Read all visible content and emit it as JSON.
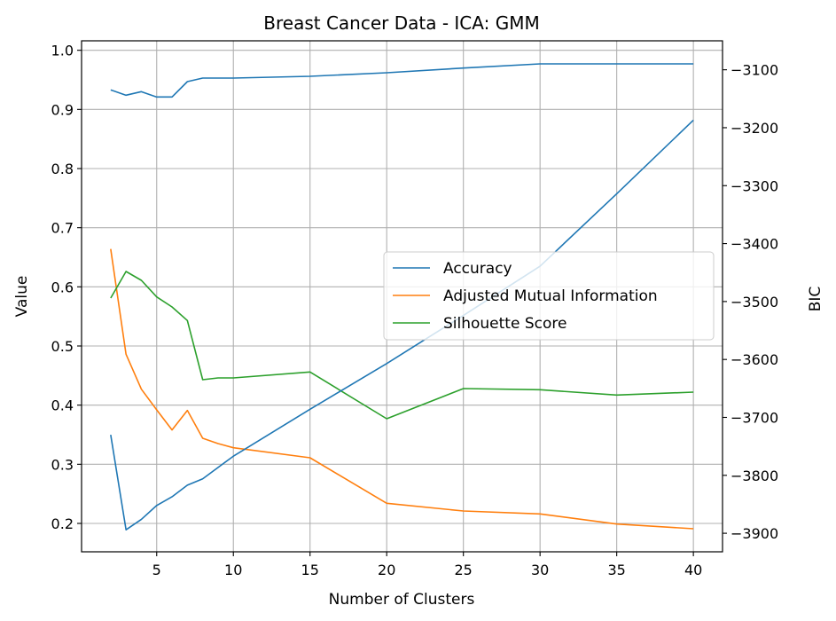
{
  "chart_data": {
    "type": "line",
    "title": "Breast Cancer Data - ICA: GMM",
    "xlabel": "Number of Clusters",
    "ylabel": "Value",
    "y2label": "BIC",
    "xlim": [
      0.1,
      41.9
    ],
    "ylim": [
      0.152,
      1.016
    ],
    "y2lim": [
      -3932,
      -3050
    ],
    "xticks": [
      5,
      10,
      15,
      20,
      25,
      30,
      35,
      40
    ],
    "yticks": [
      0.2,
      0.3,
      0.4,
      0.5,
      0.6,
      0.7,
      0.8,
      0.9,
      1.0
    ],
    "y2ticks": [
      -3900,
      -3800,
      -3700,
      -3600,
      -3500,
      -3400,
      -3300,
      -3200,
      -3100
    ],
    "grid": true,
    "legend_position": "center-right",
    "series": [
      {
        "name": "Accuracy",
        "axis": "left",
        "color": "#1f77b4",
        "x": [
          2,
          3,
          4,
          5,
          6,
          7,
          8,
          10,
          15,
          20,
          25,
          30,
          35,
          40
        ],
        "y": [
          0.933,
          0.924,
          0.93,
          0.921,
          0.921,
          0.947,
          0.953,
          0.953,
          0.956,
          0.962,
          0.97,
          0.977,
          0.977,
          0.977
        ]
      },
      {
        "name": "Adjusted Mutual Information",
        "axis": "left",
        "color": "#ff7f0e",
        "x": [
          2,
          3,
          4,
          5,
          6,
          7,
          8,
          9,
          10,
          15,
          20,
          25,
          30,
          35,
          40
        ],
        "y": [
          0.664,
          0.486,
          0.427,
          0.392,
          0.358,
          0.391,
          0.344,
          0.335,
          0.328,
          0.311,
          0.234,
          0.221,
          0.216,
          0.199,
          0.191
        ]
      },
      {
        "name": "Silhouette Score",
        "axis": "left",
        "color": "#2ca02c",
        "x": [
          2,
          3,
          4,
          5,
          6,
          7,
          8,
          9,
          10,
          15,
          20,
          25,
          30,
          35,
          40
        ],
        "y": [
          0.581,
          0.626,
          0.611,
          0.583,
          0.566,
          0.543,
          0.443,
          0.446,
          0.446,
          0.456,
          0.377,
          0.428,
          0.426,
          0.417,
          0.422
        ]
      },
      {
        "name": "BIC",
        "axis": "right",
        "color": "#1f77b4",
        "x": [
          2,
          3,
          4,
          5,
          6,
          7,
          8,
          10,
          15,
          20,
          25,
          30,
          35,
          40
        ],
        "y": [
          -3730,
          -3894,
          -3876,
          -3852,
          -3837,
          -3817,
          -3806,
          -3767,
          -3686,
          -3607,
          -3524,
          -3439,
          -3314,
          -3187
        ]
      }
    ]
  }
}
